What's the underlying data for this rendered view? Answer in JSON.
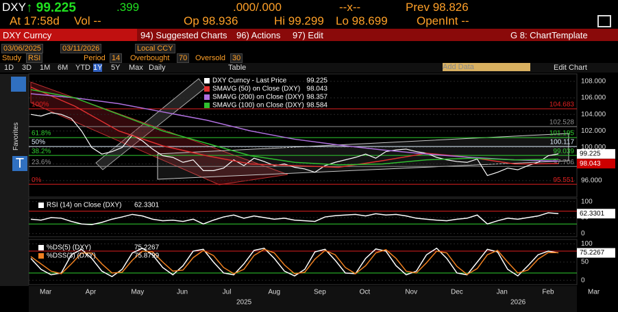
{
  "header": {
    "ticker": "DXY",
    "last": "99.225",
    "change": ".399",
    "bid_ask": ".000/.000",
    "size": "--x--",
    "prev_label": "Prev",
    "prev": "98.826",
    "time": "At 17:58d",
    "vol": "Vol --",
    "open_label": "Op",
    "open": "98.936",
    "high_label": "Hi",
    "high": "99.299",
    "low_label": "Lo",
    "low": "98.699",
    "oi": "OpenInt --"
  },
  "menu": {
    "security": "DXY Curncy",
    "items": [
      "94) Suggested Charts",
      "96) Actions",
      "97) Edit"
    ],
    "template": "G 8: ChartTemplate"
  },
  "range": {
    "start": "03/06/2025",
    "end": "03/11/2026",
    "currency": "Local CCY"
  },
  "study": {
    "label": "Study",
    "name": "RSI",
    "period_label": "Period",
    "period": 14,
    "overbought_label": "Overbought",
    "overbought": 70,
    "oversold_label": "Oversold",
    "oversold": 30
  },
  "periods": [
    "1D",
    "3D",
    "1M",
    "6M",
    "YTD",
    "1Y",
    "5Y",
    "Max"
  ],
  "frequency": "Daily",
  "table": "Table",
  "add_data": "Add Data",
  "edit_chart": "Edit Chart",
  "favorites": "Favorites",
  "x_axis": {
    "months": [
      "Mar",
      "Apr",
      "May",
      "Jun",
      "Jul",
      "Aug",
      "Sep",
      "Oct",
      "Nov",
      "Dec",
      "Jan",
      "Feb",
      "Mar"
    ],
    "years": [
      "2025",
      "2026"
    ]
  },
  "chart_data": [
    {
      "type": "line",
      "ylim": [
        94,
        108.9
      ],
      "yticks": [
        {
          "value": 96,
          "label": "96.000"
        },
        {
          "value": 98,
          "label": "98.000"
        },
        {
          "value": 100,
          "label": "100.000"
        },
        {
          "value": 102,
          "label": "102.000"
        },
        {
          "value": 104,
          "label": "104.000"
        },
        {
          "value": 106,
          "label": "106.000"
        },
        {
          "value": 108,
          "label": "108.000"
        }
      ],
      "levels": [
        {
          "label": "100%",
          "value": 104.683,
          "color": "#e02020"
        },
        {
          "label": null,
          "value": 102.528,
          "color": "#909090"
        },
        {
          "label": "61.8%",
          "value": 101.195,
          "color": "#30d030"
        },
        {
          "label": "50%",
          "value": 100.117,
          "color": "#e0f0ff"
        },
        {
          "label": "38.2%",
          "value": 99.039,
          "color": "#30d030"
        },
        {
          "label": "23.6%",
          "value": 97.706,
          "color": "#909090"
        },
        {
          "label": "0%",
          "value": 95.551,
          "color": "#e02020"
        }
      ],
      "series": [
        {
          "name": "DXY Curncy - Last Price",
          "color": "#ffffff",
          "tag": true,
          "values": [
            104.0,
            103.8,
            104.2,
            104.0,
            103.5,
            102.0,
            100.0,
            99.2,
            99.5,
            100.0,
            101.5,
            100.8,
            99.8,
            99.0,
            98.8,
            98.2,
            98.5,
            97.2,
            97.2,
            97.5,
            98.5,
            97.8,
            98.7,
            98.3,
            97.8,
            98.0,
            97.6,
            97.4,
            97.0,
            97.8,
            98.2,
            98.5,
            98.8,
            99.2,
            98.7,
            99.5,
            99.7,
            99.8,
            99.5,
            99.3,
            98.8,
            98.5,
            98.3,
            98.2,
            98.6,
            96.6,
            97.0,
            97.5,
            97.3,
            97.8,
            98.2,
            99.0,
            99.225
          ]
        },
        {
          "name": "SMAVG (50)  on Close (DXY)",
          "color": "#e03030",
          "tag": true,
          "values": [
            107.3,
            105.0,
            102.0,
            100.2,
            99.0,
            98.0,
            97.8,
            97.6,
            98.4,
            99.3,
            98.8,
            98.0,
            98.043
          ]
        },
        {
          "name": "SMAVG (200)  on Close (DXY)",
          "color": "#b070e0",
          "tag": false,
          "values": [
            106.5,
            106.0,
            105.3,
            104.3,
            103.3,
            102.0,
            101.0,
            100.3,
            99.7,
            99.2,
            98.8,
            98.5,
            98.357
          ]
        },
        {
          "name": "SMAVG (100)  on Close (DXY)",
          "color": "#30c030",
          "tag": false,
          "values": [
            107.0,
            106.0,
            104.0,
            102.0,
            100.5,
            99.0,
            98.2,
            97.9,
            98.0,
            98.5,
            98.7,
            98.5,
            98.584
          ]
        }
      ]
    },
    {
      "type": "line",
      "ylim": [
        -10,
        110
      ],
      "yticks": [
        0,
        50,
        100
      ],
      "levels": [
        {
          "value": 70,
          "color": "#e02020"
        },
        {
          "value": 30,
          "color": "#30d030"
        }
      ],
      "series": [
        {
          "name": "RSI (14)  on Close (DXY)",
          "color": "#ffffff",
          "values": [
            45,
            42,
            50,
            48,
            38,
            30,
            28,
            35,
            45,
            52,
            60,
            55,
            45,
            40,
            42,
            38,
            45,
            30,
            42,
            52,
            58,
            48,
            55,
            50,
            45,
            48,
            42,
            40,
            38,
            52,
            56,
            58,
            60,
            55,
            62,
            58,
            60,
            55,
            48,
            45,
            42,
            40,
            45,
            48,
            58,
            30,
            40,
            48,
            45,
            50,
            55,
            65,
            62.3301
          ]
        }
      ]
    },
    {
      "type": "line",
      "ylim": [
        -12,
        112
      ],
      "yticks": [
        0,
        50,
        100
      ],
      "levels": [
        {
          "value": 80,
          "color": "#e02020"
        },
        {
          "value": 20,
          "color": "#30d030"
        }
      ],
      "series": [
        {
          "name": "%DS(5) (DXY)",
          "color": "#ffffff",
          "values": [
            60,
            30,
            15,
            20,
            70,
            85,
            60,
            25,
            10,
            30,
            75,
            88,
            70,
            35,
            15,
            40,
            80,
            85,
            50,
            20,
            15,
            45,
            82,
            88,
            60,
            25,
            12,
            30,
            78,
            85,
            55,
            20,
            18,
            60,
            86,
            80,
            40,
            15,
            25,
            70,
            88,
            60,
            20,
            15,
            50,
            85,
            78,
            30,
            12,
            40,
            70,
            80,
            75.2267
          ]
        },
        {
          "name": "%DSS(3) (DXY)",
          "color": "#f08020",
          "values": [
            65,
            45,
            25,
            18,
            45,
            75,
            75,
            45,
            20,
            22,
            55,
            80,
            78,
            50,
            25,
            28,
            62,
            82,
            68,
            35,
            18,
            30,
            68,
            85,
            75,
            42,
            18,
            22,
            58,
            82,
            70,
            35,
            18,
            40,
            75,
            84,
            60,
            25,
            20,
            48,
            80,
            75,
            38,
            16,
            32,
            70,
            82,
            50,
            20,
            28,
            58,
            76,
            75.8799
          ]
        }
      ]
    }
  ]
}
